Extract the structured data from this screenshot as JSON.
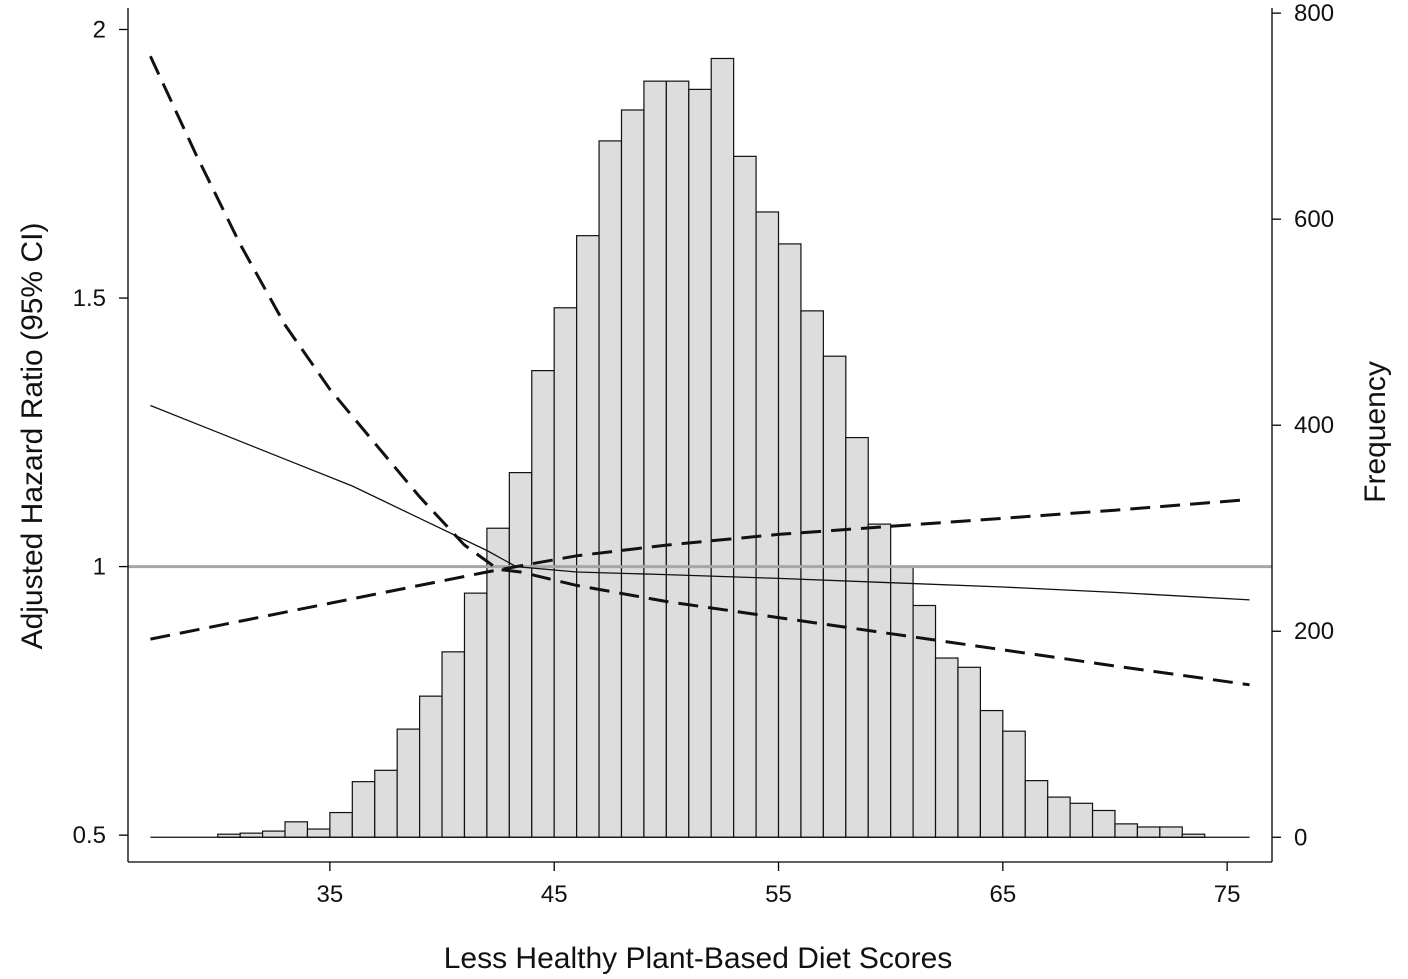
{
  "chart_data": {
    "type": "bar",
    "xlabel": "Less Healthy Plant-Based Diet Scores",
    "ylabel_left": "Adjusted Hazard Ratio (95% CI)",
    "ylabel_right": "Frequency",
    "x_ticks": [
      35,
      45,
      55,
      65,
      75
    ],
    "y_left_ticks": [
      0.5,
      1,
      1.5,
      2
    ],
    "y_left_tick_labels": [
      "0.5",
      "1",
      "1.5",
      "2"
    ],
    "y_right_ticks": [
      0,
      200,
      400,
      600,
      800
    ],
    "xlim": [
      26,
      77
    ],
    "ylim_left": [
      0.45,
      2.04
    ],
    "ylim_right": [
      -24,
      805
    ],
    "reference_line": 1,
    "colors": {
      "bar_fill": "#dddddd",
      "reference_line": "#a6a6a6",
      "curve": "#111111"
    },
    "histogram": {
      "bin_width": 1,
      "bins": [
        {
          "start": 30,
          "count": 3
        },
        {
          "start": 31,
          "count": 4
        },
        {
          "start": 32,
          "count": 6
        },
        {
          "start": 33,
          "count": 15
        },
        {
          "start": 34,
          "count": 8
        },
        {
          "start": 35,
          "count": 24
        },
        {
          "start": 36,
          "count": 54
        },
        {
          "start": 37,
          "count": 65
        },
        {
          "start": 38,
          "count": 105
        },
        {
          "start": 39,
          "count": 137
        },
        {
          "start": 40,
          "count": 180
        },
        {
          "start": 41,
          "count": 237
        },
        {
          "start": 42,
          "count": 300
        },
        {
          "start": 43,
          "count": 354
        },
        {
          "start": 44,
          "count": 453
        },
        {
          "start": 45,
          "count": 514
        },
        {
          "start": 46,
          "count": 584
        },
        {
          "start": 47,
          "count": 676
        },
        {
          "start": 48,
          "count": 706
        },
        {
          "start": 49,
          "count": 734
        },
        {
          "start": 50,
          "count": 734
        },
        {
          "start": 51,
          "count": 726
        },
        {
          "start": 52,
          "count": 756
        },
        {
          "start": 53,
          "count": 661
        },
        {
          "start": 54,
          "count": 607
        },
        {
          "start": 55,
          "count": 576
        },
        {
          "start": 56,
          "count": 511
        },
        {
          "start": 57,
          "count": 467
        },
        {
          "start": 58,
          "count": 388
        },
        {
          "start": 59,
          "count": 304
        },
        {
          "start": 60,
          "count": 262
        },
        {
          "start": 61,
          "count": 225
        },
        {
          "start": 62,
          "count": 174
        },
        {
          "start": 63,
          "count": 165
        },
        {
          "start": 64,
          "count": 123
        },
        {
          "start": 65,
          "count": 103
        },
        {
          "start": 66,
          "count": 55
        },
        {
          "start": 67,
          "count": 39
        },
        {
          "start": 68,
          "count": 33
        },
        {
          "start": 69,
          "count": 26
        },
        {
          "start": 70,
          "count": 13
        },
        {
          "start": 71,
          "count": 10
        },
        {
          "start": 72,
          "count": 10
        },
        {
          "start": 73,
          "count": 3
        }
      ]
    },
    "series": [
      {
        "style": "solid",
        "x": [
          27,
          30,
          33,
          36,
          39,
          42,
          43.3,
          46,
          50,
          55,
          60,
          65,
          70,
          76
        ],
        "y": [
          1.3,
          1.25,
          1.2,
          1.15,
          1.09,
          1.03,
          1.0,
          0.99,
          0.985,
          0.978,
          0.97,
          0.962,
          0.952,
          0.938
        ]
      },
      {
        "style": "dashed",
        "x": [
          27,
          29,
          31,
          33,
          35,
          37,
          39,
          41,
          42.5,
          43.5,
          46,
          50,
          55,
          60,
          65,
          70,
          76
        ],
        "y": [
          1.95,
          1.77,
          1.6,
          1.45,
          1.33,
          1.23,
          1.13,
          1.04,
          0.995,
          0.99,
          0.965,
          0.935,
          0.905,
          0.875,
          0.845,
          0.815,
          0.78
        ]
      },
      {
        "style": "dashed",
        "x": [
          27,
          30,
          33,
          36,
          39,
          42,
          43.3,
          46,
          50,
          55,
          60,
          65,
          70,
          76
        ],
        "y": [
          0.865,
          0.89,
          0.915,
          0.94,
          0.965,
          0.99,
          1.0,
          1.02,
          1.04,
          1.06,
          1.075,
          1.09,
          1.105,
          1.125
        ]
      }
    ]
  }
}
